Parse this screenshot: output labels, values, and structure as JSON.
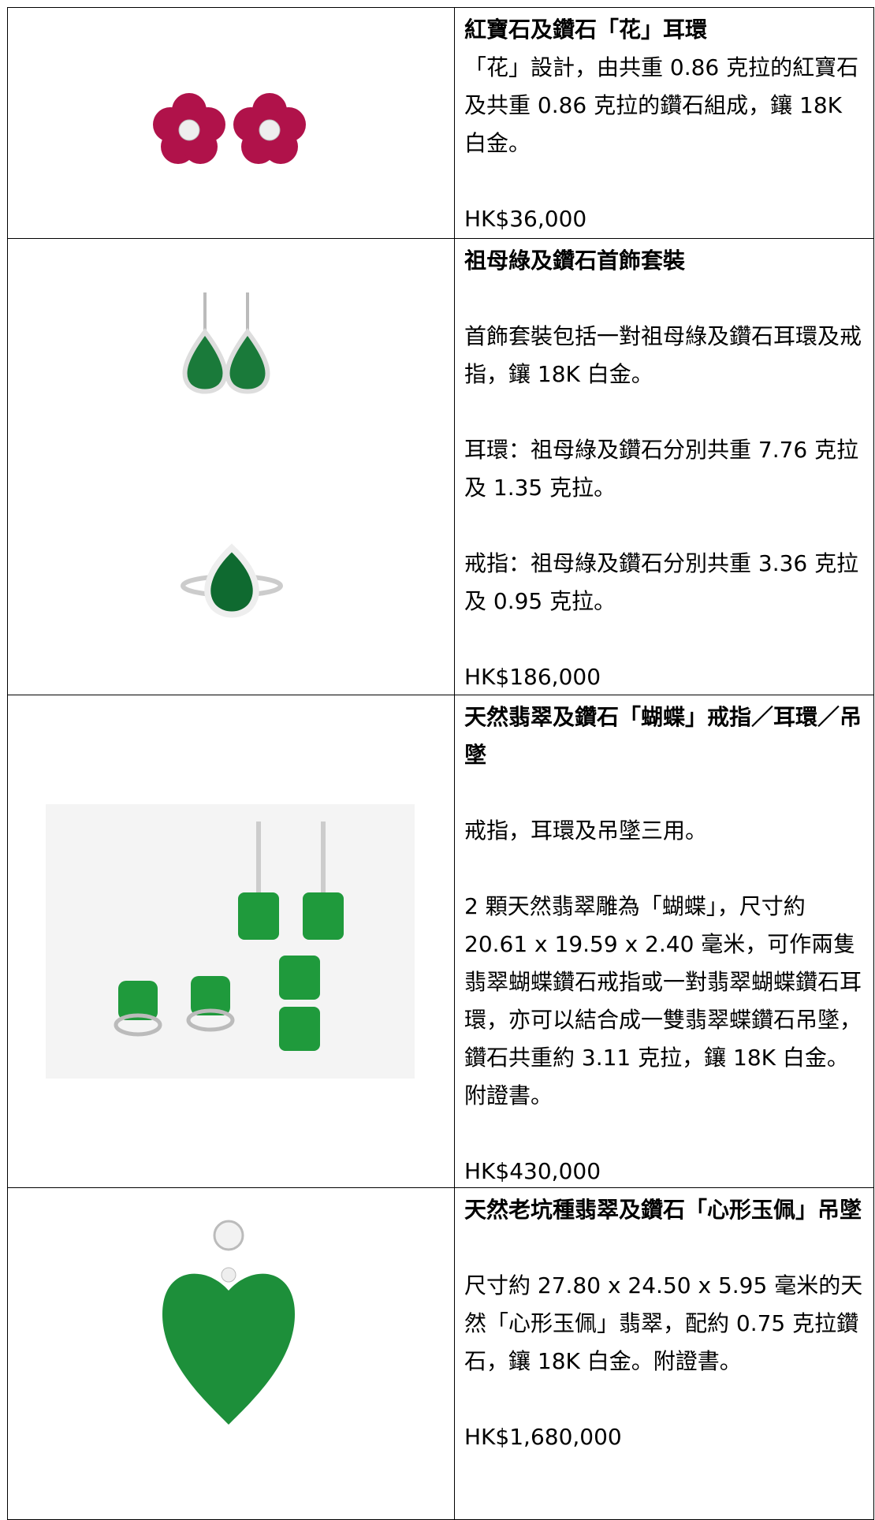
{
  "items": [
    {
      "title": "紅寶石及鑽石「花」耳環",
      "paragraphs": [
        "「花」設計，由共重 0.86 克拉的紅寶石及共重 0.86 克拉的鑽石組成，鑲 18K 白金。"
      ],
      "price": "HK$36,000"
    },
    {
      "title": "祖母綠及鑽石首飾套裝",
      "paragraphs": [
        "首飾套裝包括一對祖母綠及鑽石耳環及戒指，鑲 18K 白金。",
        "耳環：祖母綠及鑽石分別共重 7.76 克拉及 1.35 克拉。",
        "戒指：祖母綠及鑽石分別共重 3.36 克拉及 0.95 克拉。"
      ],
      "price": "HK$186,000"
    },
    {
      "title": "天然翡翠及鑽石「蝴蝶」戒指／耳環／吊墜",
      "paragraphs": [
        "戒指，耳環及吊墜三用。",
        "2 顆天然翡翠雕為「蝴蝶」，尺寸約 20.61 x 19.59 x 2.40 毫米，可作兩隻翡翠蝴蝶鑽石戒指或一對翡翠蝴蝶鑽石耳環，亦可以結合成一雙翡翠蝶鑽石吊墜，鑽石共重約 3.11 克拉，鑲 18K 白金。附證書。"
      ],
      "price": "HK$430,000"
    },
    {
      "title": "天然老坑種翡翠及鑽石「心形玉佩」吊墜",
      "paragraphs": [
        "尺寸約 27.80 x 24.50 x 5.95 毫米的天然「心形玉佩」翡翠，配約 0.75 克拉鑽石，鑲 18K 白金。附證書。"
      ],
      "price": "HK$1,680,000"
    }
  ]
}
